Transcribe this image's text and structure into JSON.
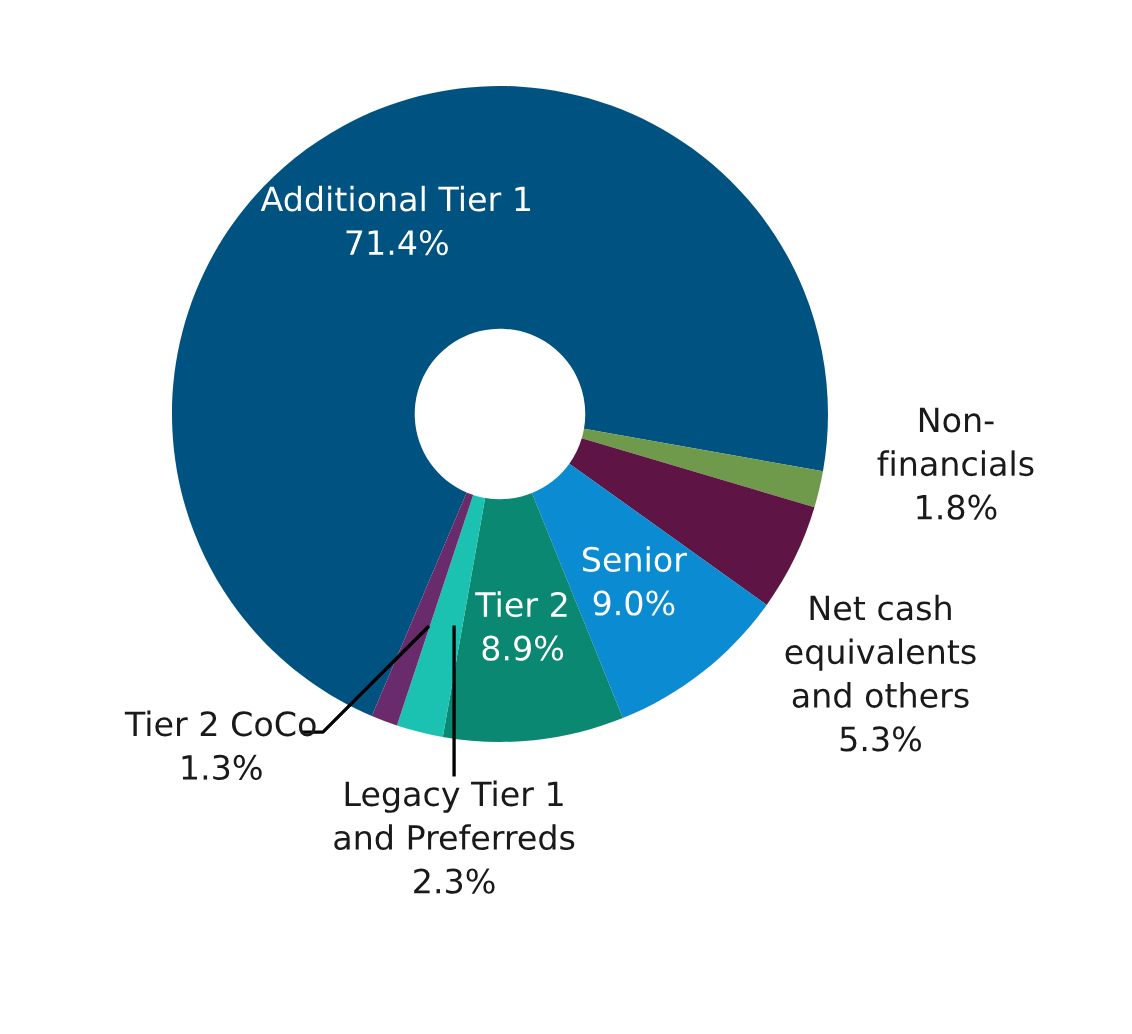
{
  "chart_data": {
    "type": "donut",
    "categories": [
      "Additional Tier 1",
      "Non-\nfinancials",
      "Net cash\nequivalents\nand others",
      "Senior",
      "Tier 2",
      "Legacy Tier 1\nand Preferreds",
      "Tier 2 CoCo"
    ],
    "values": [
      71.4,
      1.8,
      5.3,
      9.0,
      8.9,
      2.3,
      1.3
    ],
    "colors": [
      "#005281",
      "#6f9a4b",
      "#5e1444",
      "#0b8bd1",
      "#0a8872",
      "#1cc2b1",
      "#6a2b6d"
    ],
    "value_labels": [
      "71.4%",
      "1.8%",
      "5.3%",
      "9.0%",
      "8.9%",
      "2.3%",
      "1.3%"
    ]
  }
}
